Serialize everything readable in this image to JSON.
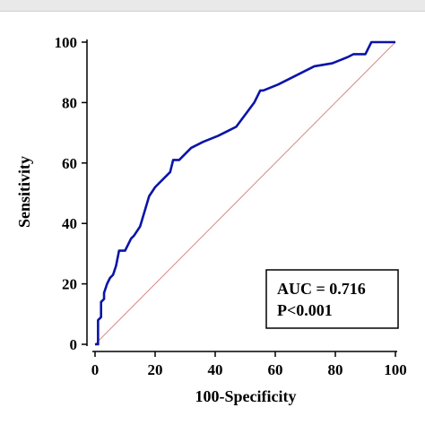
{
  "chart_data": {
    "type": "line",
    "xlabel": "100-Specificity",
    "ylabel": "Sensitivity",
    "xlim": [
      0,
      100
    ],
    "ylim": [
      0,
      100
    ],
    "xticks": [
      "0",
      "20",
      "40",
      "60",
      "80",
      "100"
    ],
    "yticks": [
      "0",
      "20",
      "40",
      "60",
      "80",
      "100"
    ],
    "series": [
      {
        "color": "#0a14a8",
        "x": [
          0,
          1,
          1,
          2,
          2,
          3,
          3,
          4,
          5,
          6,
          7,
          8,
          9,
          10,
          11,
          12,
          13,
          15,
          18,
          20,
          25,
          26,
          27,
          28,
          30,
          32,
          36,
          41,
          47,
          50,
          53,
          55,
          56,
          61,
          67,
          73,
          79,
          84,
          86,
          88,
          90,
          92,
          100
        ],
        "y": [
          0,
          0,
          8,
          9,
          14,
          15,
          17,
          20,
          22,
          23,
          26,
          31,
          31,
          31,
          33,
          35,
          36,
          39,
          49,
          52,
          57,
          61,
          61,
          61,
          63,
          65,
          67,
          69,
          72,
          76,
          80,
          84,
          84,
          86,
          89,
          92,
          93,
          95,
          96,
          96,
          96,
          100,
          100
        ]
      },
      {
        "color": "#d98a8a",
        "x": [
          0,
          100
        ],
        "y": [
          0,
          100
        ]
      }
    ],
    "annotation": {
      "lines": [
        "AUC = 0.716",
        "P<0.001"
      ]
    }
  }
}
